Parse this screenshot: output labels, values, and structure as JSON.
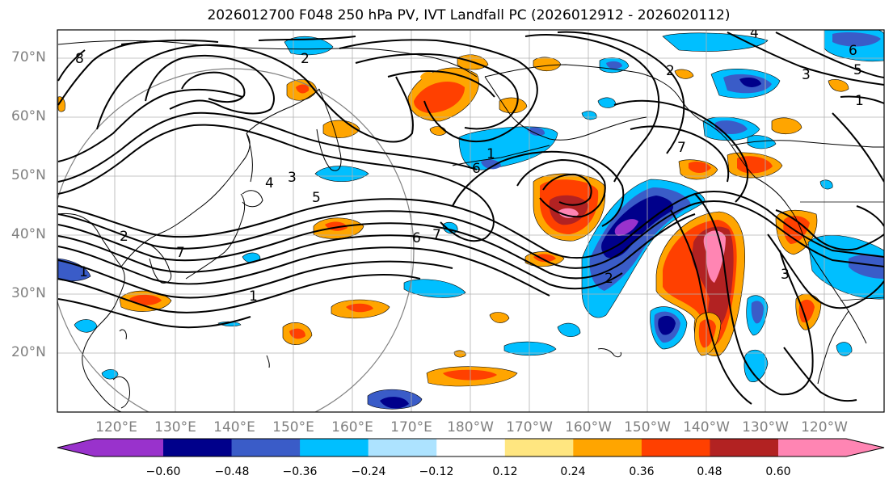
{
  "title": "2026012700 F048 250 hPa PV, IVT Landfall PC (2026012912 - 2026020112)",
  "lat_labels": [
    "70°N",
    "60°N",
    "50°N",
    "40°N",
    "30°N",
    "20°N"
  ],
  "lon_labels": [
    "120°E",
    "130°E",
    "140°E",
    "150°E",
    "160°E",
    "170°E",
    "180°W",
    "170°W",
    "160°W",
    "150°W",
    "140°W",
    "130°W",
    "120°W"
  ],
  "colorbar": {
    "ticks": [
      "−0.60",
      "−0.48",
      "−0.36",
      "−0.24",
      "−0.12",
      "0.12",
      "0.24",
      "0.36",
      "0.48",
      "0.60"
    ],
    "colors": [
      "#9932CC",
      "#00008B",
      "#3A5CC8",
      "#00BFFF",
      "#ADE3FF",
      "#FFFFFF",
      "#FFE680",
      "#FFA500",
      "#FF4000",
      "#B22222",
      "#FF85B3"
    ]
  },
  "contour_labels": [
    "8",
    "2",
    "4",
    "6",
    "3",
    "1",
    "5",
    "7",
    "1",
    "2",
    "3",
    "4",
    "5",
    "6",
    "7",
    "1",
    "2",
    "3",
    "6",
    "7",
    "1",
    "2"
  ]
}
